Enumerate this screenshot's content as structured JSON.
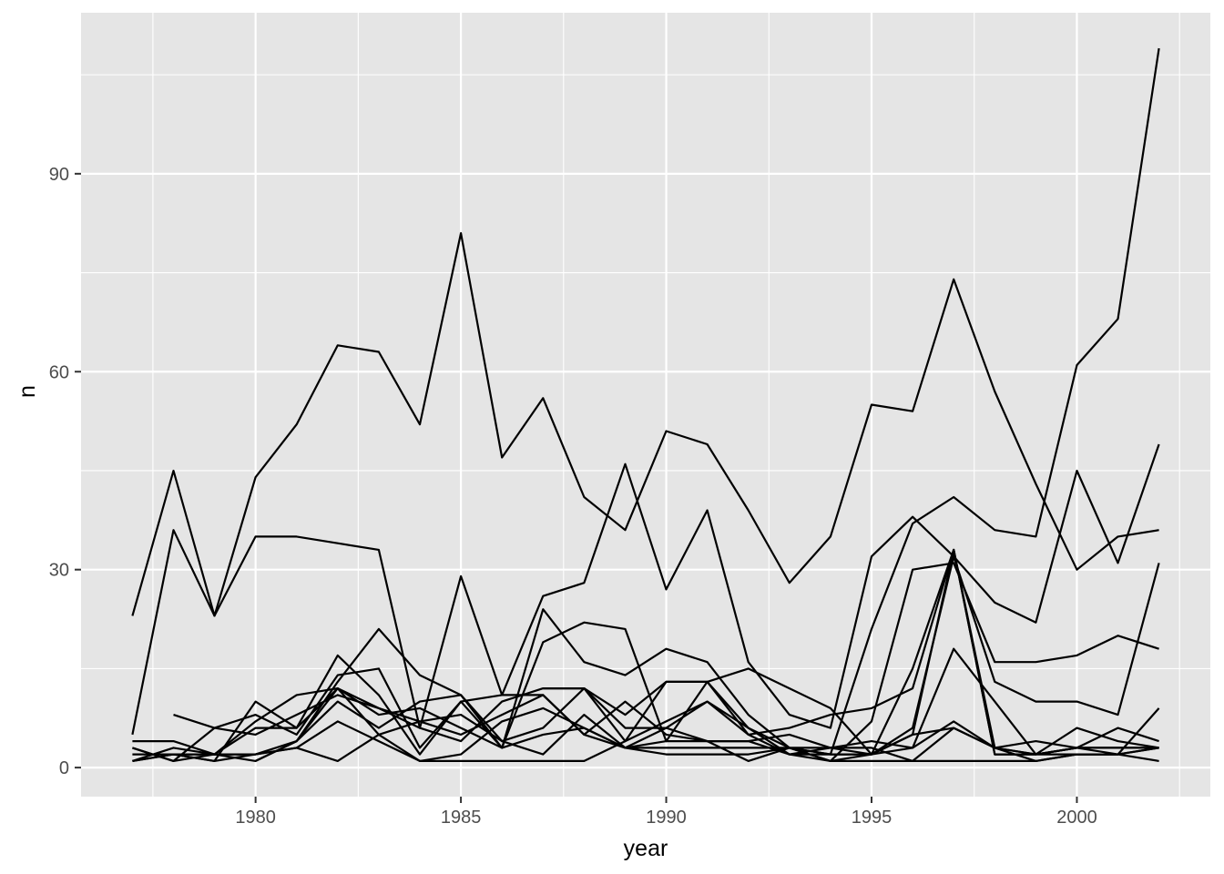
{
  "chart_data": {
    "type": "line",
    "title": "",
    "xlabel": "year",
    "ylabel": "n",
    "xlim": [
      1975.75,
      2003.25
    ],
    "ylim": [
      -4.4,
      114.4
    ],
    "x_ticks": [
      1980,
      1985,
      1990,
      1995,
      2000
    ],
    "y_ticks": [
      0,
      30,
      60,
      90
    ],
    "grid": true,
    "legend": "none",
    "colors": {
      "panel": "#e5e5e5",
      "grid": "#ffffff",
      "line": "#000000",
      "tick_text": "#4d4d4d"
    },
    "series": [
      {
        "x": [
          1977,
          1978,
          1979,
          1980,
          1981,
          1982,
          1983,
          1984,
          1985,
          1986,
          1987,
          1988,
          1989,
          1990,
          1991,
          1992,
          1993,
          1994,
          1995,
          1996,
          1997,
          1998,
          1999,
          2000,
          2001,
          2002
        ],
        "values": [
          23,
          45,
          23,
          44,
          52,
          64,
          63,
          52,
          81,
          47,
          56,
          41,
          36,
          51,
          49,
          39,
          28,
          35,
          55,
          54,
          74,
          57,
          43,
          30,
          35,
          36
        ]
      },
      {
        "x": [
          1977,
          1978,
          1979,
          1980,
          1981,
          1982,
          1983,
          1984,
          1985,
          1986,
          1987,
          1988,
          1989,
          1990,
          1991,
          1992,
          1993,
          1994,
          1995,
          1996,
          1997,
          1998,
          1999,
          2000,
          2001,
          2002
        ],
        "values": [
          5,
          36,
          23,
          35,
          35,
          34,
          33,
          6,
          29,
          11,
          26,
          28,
          46,
          27,
          39,
          16,
          8,
          6,
          32,
          38,
          32,
          25,
          22,
          45,
          31,
          49
        ]
      },
      {
        "x": [
          1977,
          1978,
          1979,
          1980,
          1981,
          1982,
          1983,
          1984,
          1985,
          1986,
          1987,
          1988,
          1989,
          1990,
          1991,
          1992,
          1993,
          1994,
          1995,
          1996,
          1997,
          1998,
          1999,
          2000,
          2001,
          2002
        ],
        "values": [
          1,
          3,
          2,
          2,
          4,
          13,
          21,
          14,
          11,
          3,
          19,
          22,
          21,
          4,
          13,
          6,
          3,
          2,
          21,
          37,
          41,
          36,
          35,
          61,
          68,
          109
        ]
      },
      {
        "x": [
          1977,
          1978,
          1979,
          1980,
          1981,
          1982,
          1983,
          1984,
          1985,
          1986,
          1987,
          1988,
          1989,
          1990,
          1991,
          1992,
          1993,
          1994,
          1995,
          1996,
          1997,
          1998,
          1999,
          2000,
          2001,
          2002
        ],
        "values": [
          1,
          2,
          1,
          10,
          6,
          17,
          11,
          2,
          10,
          3,
          24,
          16,
          14,
          18,
          16,
          8,
          3,
          1,
          7,
          30,
          31,
          16,
          16,
          17,
          20,
          18
        ]
      },
      {
        "x": [
          1977,
          1978,
          1979,
          1980,
          1981,
          1982,
          1983,
          1984,
          1985,
          1986,
          1987,
          1988,
          1989,
          1990,
          1991,
          1992,
          1993,
          1994,
          1995,
          1996,
          1997,
          1998,
          1999,
          2000,
          2001,
          2002
        ],
        "values": [
          4,
          4,
          2,
          7,
          11,
          12,
          9,
          6,
          4,
          10,
          12,
          12,
          4,
          13,
          13,
          15,
          12,
          9,
          2,
          6,
          32,
          13,
          10,
          10,
          8,
          31
        ]
      },
      {
        "x": [
          1977,
          1978,
          1979,
          1980,
          1981,
          1982,
          1983,
          1984,
          1985,
          1986,
          1987,
          1988,
          1989,
          1990,
          1991,
          1992,
          1993,
          1994,
          1995,
          1996,
          1997,
          1998,
          1999,
          2000,
          2001,
          2002
        ],
        "values": [
          3,
          1,
          6,
          8,
          5,
          14,
          15,
          3,
          10,
          11,
          11,
          5,
          10,
          5,
          4,
          4,
          5,
          3,
          2,
          3,
          18,
          10,
          2,
          2,
          2,
          9
        ]
      },
      {
        "x": [
          1977,
          1978,
          1979,
          1980,
          1981,
          1982,
          1983,
          1984,
          1985,
          1986,
          1987,
          1988,
          1989,
          1990,
          1991,
          1992,
          1993,
          1994,
          1995,
          1996,
          1997,
          1998,
          1999,
          2000,
          2001,
          2002
        ],
        "values": [
          1,
          2,
          2,
          1,
          4,
          10,
          6,
          10,
          11,
          4,
          6,
          12,
          6,
          6,
          10,
          5,
          6,
          8,
          9,
          12,
          33,
          2,
          2,
          3,
          6,
          4
        ]
      },
      {
        "x": [
          1977,
          1978,
          1979,
          1980,
          1981,
          1982,
          1983,
          1984,
          1985,
          1986,
          1987,
          1988,
          1989,
          1990,
          1991,
          1992,
          1993,
          1994,
          1995,
          1996,
          1997,
          1998,
          1999,
          2000,
          2001,
          2002
        ],
        "values": [
          2,
          2,
          1,
          2,
          3,
          7,
          4,
          1,
          2,
          7,
          9,
          6,
          3,
          2,
          2,
          2,
          3,
          3,
          3,
          1,
          1,
          1,
          1,
          2,
          2,
          1
        ]
      },
      {
        "x": [
          1977,
          1978,
          1979,
          1980,
          1981,
          1982,
          1983,
          1984,
          1985,
          1986,
          1987,
          1988,
          1989,
          1990,
          1991,
          1992,
          1993,
          1994,
          1995,
          1996,
          1997,
          1998,
          1999,
          2000,
          2001,
          2002
        ],
        "values": [
          3,
          1,
          2,
          2,
          3,
          1,
          5,
          7,
          8,
          4,
          2,
          8,
          3,
          4,
          4,
          4,
          2,
          2,
          2,
          5,
          33,
          3,
          2,
          6,
          4,
          3
        ]
      },
      {
        "x": [
          1978,
          1979,
          1980,
          1981,
          1982,
          1983,
          1984,
          1985,
          1986,
          1987,
          1988,
          1989,
          1990,
          1991,
          1992,
          1993,
          1994,
          1995,
          1996,
          1997,
          1998,
          1999,
          2000,
          2001,
          2002
        ],
        "values": [
          8,
          6,
          5,
          8,
          11,
          9,
          7,
          5,
          8,
          11,
          5,
          3,
          3,
          3,
          3,
          3,
          2,
          2,
          15,
          33,
          2,
          2,
          3,
          3,
          3
        ]
      },
      {
        "x": [
          1978,
          1979,
          1980,
          1981,
          1982,
          1983,
          1984,
          1985,
          1986,
          1987,
          1988,
          1989,
          1990,
          1991,
          1992,
          1993,
          1994,
          1995,
          1996,
          1997,
          1998,
          1999,
          2000,
          2001,
          2002
        ],
        "values": [
          2,
          2,
          6,
          6,
          12,
          5,
          1,
          1,
          1,
          1,
          1,
          4,
          7,
          10,
          6,
          2,
          3,
          4,
          3,
          7,
          3,
          2,
          3,
          2,
          3
        ]
      },
      {
        "x": [
          1980,
          1981,
          1982,
          1983,
          1984,
          1985,
          1986,
          1987,
          1988,
          1989,
          1990,
          1991,
          1992,
          1993,
          1994,
          1995,
          1996,
          1997,
          1998,
          1999,
          2000,
          2001,
          2002
        ],
        "values": [
          1,
          4,
          12,
          8,
          9,
          6,
          3,
          5,
          6,
          3,
          6,
          4,
          1,
          3,
          1,
          1,
          1,
          6,
          3,
          1,
          2,
          2,
          3
        ]
      },
      {
        "x": [
          1987,
          1988,
          1989,
          1990,
          1991,
          1992,
          1993,
          1994,
          1995,
          1996,
          1997,
          1998,
          1999,
          2000,
          2001,
          2002
        ],
        "values": [
          12,
          12,
          8,
          13,
          13,
          5,
          2,
          1,
          2,
          5,
          6,
          3,
          4,
          3,
          3,
          3
        ]
      }
    ]
  }
}
